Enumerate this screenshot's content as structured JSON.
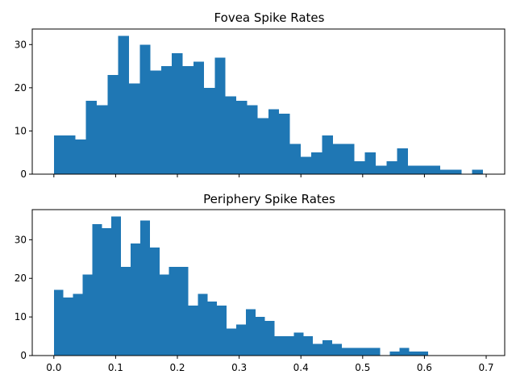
{
  "chart_data": [
    {
      "type": "bar",
      "title": "Fovea Spike Rates",
      "xlabel": "",
      "ylabel": "",
      "bin_start": 0.0,
      "bin_width": 0.01737,
      "values": [
        9,
        9,
        8,
        17,
        16,
        23,
        32,
        21,
        30,
        24,
        25,
        28,
        25,
        26,
        20,
        27,
        18,
        17,
        16,
        13,
        15,
        14,
        7,
        4,
        5,
        9,
        7,
        7,
        3,
        5,
        2,
        3,
        6,
        2,
        2,
        2,
        1,
        1,
        0,
        1
      ],
      "xlim": [
        -0.035,
        0.73
      ],
      "ylim": [
        0,
        33.6
      ],
      "yticks": [
        0,
        10,
        20,
        30
      ],
      "xticks": [
        0.0,
        0.1,
        0.2,
        0.3,
        0.4,
        0.5,
        0.6,
        0.7
      ],
      "show_xtick_labels": false,
      "color": "#1f77b4",
      "grid": false
    },
    {
      "type": "bar",
      "title": "Periphery Spike Rates",
      "xlabel": "",
      "ylabel": "",
      "bin_start": 0.0,
      "bin_width": 0.01554,
      "values": [
        17,
        15,
        16,
        21,
        34,
        33,
        36,
        23,
        29,
        35,
        28,
        21,
        23,
        23,
        13,
        16,
        14,
        13,
        7,
        8,
        12,
        10,
        9,
        5,
        5,
        6,
        5,
        3,
        4,
        3,
        2,
        2,
        2,
        2,
        0,
        1,
        2,
        1,
        1
      ],
      "xlim": [
        -0.035,
        0.73
      ],
      "ylim": [
        0,
        37.8
      ],
      "yticks": [
        0,
        10,
        20,
        30
      ],
      "xticks": [
        0.0,
        0.1,
        0.2,
        0.3,
        0.4,
        0.5,
        0.6,
        0.7
      ],
      "xtick_labels": [
        "0.0",
        "0.1",
        "0.2",
        "0.3",
        "0.4",
        "0.5",
        "0.6",
        "0.7"
      ],
      "show_xtick_labels": true,
      "color": "#1f77b4",
      "grid": false
    }
  ]
}
